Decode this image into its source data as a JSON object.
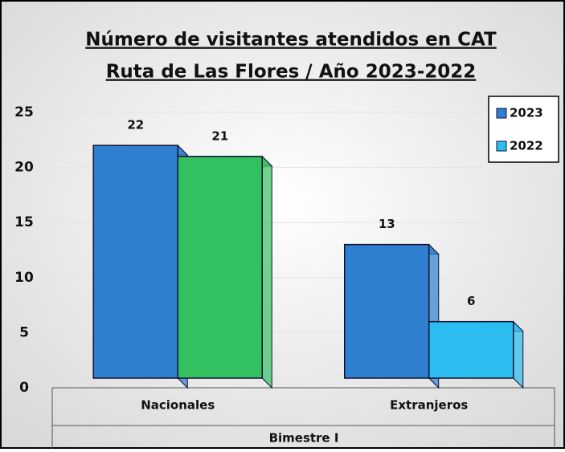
{
  "chart_data": {
    "type": "bar3d",
    "title": "Número de visitantes atendidos en CAT",
    "subtitle": "Ruta de Las Flores / Año 2023-2022",
    "categories": [
      "Nacionales",
      "Extranjeros"
    ],
    "group_label": "Bimestre I",
    "series": [
      {
        "name": "2023",
        "color": "#2f7fd0",
        "colors": [
          "#2f7fd0",
          "#2f7fd0"
        ],
        "values": [
          22,
          13
        ]
      },
      {
        "name": "2022",
        "color": "#2bbcf0",
        "colors": [
          "#33c060",
          "#2bbcf0"
        ],
        "values": [
          21,
          6
        ]
      }
    ],
    "ylim": [
      0,
      25
    ],
    "yticks": [
      0,
      5,
      10,
      15,
      20,
      25
    ],
    "grid": true,
    "legend": "top-right"
  }
}
